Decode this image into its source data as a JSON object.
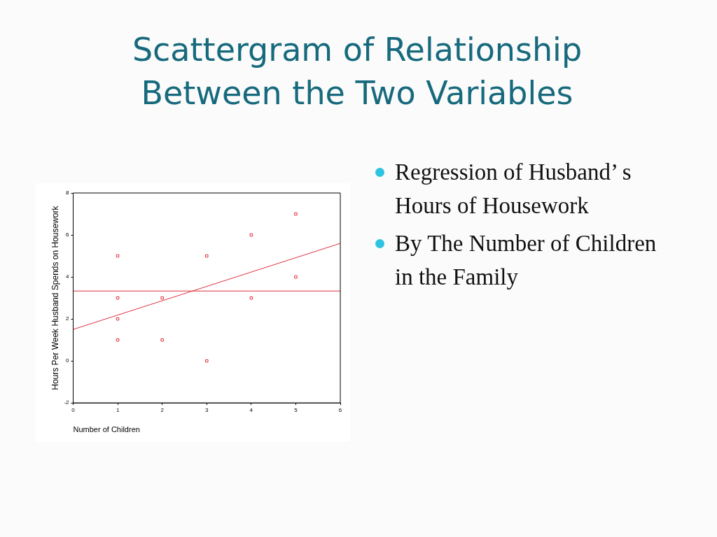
{
  "chart_data": {
    "type": "scatter",
    "title": "Scattergram of Relationship Between the Two Variables",
    "xlabel": "Number of Children",
    "ylabel": "Hours Per Week Husband Spends on Housework",
    "annotations": [
      "Regression of Husband’ s Hours of Housework",
      "By The Number of Children in the Family"
    ],
    "series": [
      {
        "color": "#e0303c",
        "marker": "square",
        "x": [
          1,
          1,
          1,
          1,
          2,
          2,
          3,
          3,
          4,
          4,
          5,
          5
        ],
        "values": [
          5,
          3,
          2,
          1,
          3,
          1,
          5,
          0,
          6,
          3,
          7,
          4
        ]
      },
      {
        "type": "line",
        "color": "#e0303c",
        "marker": "none",
        "line_style": "solid",
        "x": [
          0,
          6
        ],
        "values": [
          1.5,
          5.6
        ]
      }
    ],
    "ref_lines": [
      {
        "axis": "y",
        "value": 3.33,
        "color": "#e0303c"
      }
    ],
    "xlim": [
      0,
      6
    ],
    "xticks": [
      0,
      1,
      2,
      3,
      4,
      5,
      6
    ],
    "ylim": [
      -2,
      8
    ],
    "yticks": [
      -2,
      0,
      2,
      4,
      6,
      8
    ],
    "grid": false,
    "legend": false
  }
}
